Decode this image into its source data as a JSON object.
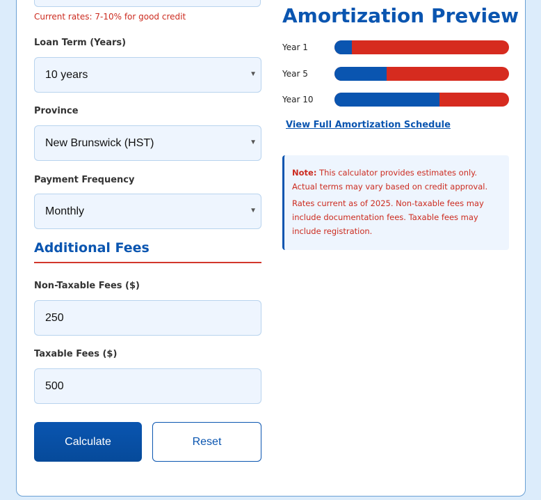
{
  "form": {
    "rate_hint": "Current rates: 7-10% for good credit",
    "loan_term": {
      "label": "Loan Term (Years)",
      "value": "10 years"
    },
    "province": {
      "label": "Province",
      "value": "New Brunswick (HST)"
    },
    "payment_frequency": {
      "label": "Payment Frequency",
      "value": "Monthly"
    },
    "additional_fees_title": "Additional Fees",
    "non_taxable_fees": {
      "label": "Non-Taxable Fees ($)",
      "value": "250"
    },
    "taxable_fees": {
      "label": "Taxable Fees ($)",
      "value": "500"
    },
    "calculate_label": "Calculate",
    "reset_label": "Reset"
  },
  "preview": {
    "title": "Amortization Preview",
    "rows": [
      {
        "label": "Year 1",
        "principal_fraction": 0.1
      },
      {
        "label": "Year 5",
        "principal_fraction": 0.3
      },
      {
        "label": "Year 10",
        "principal_fraction": 0.6
      }
    ],
    "schedule_link": "View Full Amortization Schedule"
  },
  "note": {
    "prefix": "Note:",
    "line1": "This calculator provides estimates only. Actual terms may vary based on credit approval.",
    "line2": "Rates current as of 2025. Non-taxable fees may include documentation fees. Taxable fees may include registration."
  },
  "colors": {
    "accent": "#0a55b0",
    "warning": "#cc2b1f",
    "bar_interest": "#d62b1f"
  }
}
